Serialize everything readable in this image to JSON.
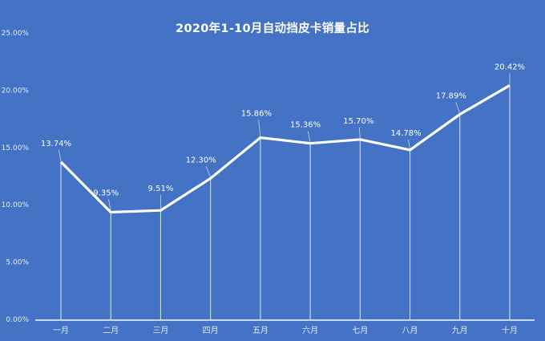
{
  "chart_data": {
    "type": "line",
    "title": "2020年1-10月自动挡皮卡销量占比",
    "xlabel": "",
    "ylabel": "",
    "categories": [
      "一月",
      "二月",
      "三月",
      "四月",
      "五月",
      "六月",
      "七月",
      "八月",
      "九月",
      "十月"
    ],
    "series": [
      {
        "name": "自动挡皮卡销量占比",
        "values": [
          13.74,
          9.35,
          9.51,
          12.3,
          15.86,
          15.36,
          15.7,
          14.78,
          17.89,
          20.42
        ],
        "labels": [
          "13.74%",
          "9.35%",
          "9.51%",
          "12.30%",
          "15.86%",
          "15.36%",
          "15.70%",
          "14.78%",
          "17.89%",
          "20.42%"
        ]
      }
    ],
    "y_ticks": [
      "0.00%",
      "5.00%",
      "10.00%",
      "15.00%",
      "20.00%",
      "25.00%"
    ],
    "ylim": [
      0,
      25
    ],
    "grid": false,
    "drop_lines": true,
    "legend": "none",
    "colors": {
      "background": "#4472c4",
      "line": "#ffffff",
      "text": "#ffffff"
    }
  }
}
